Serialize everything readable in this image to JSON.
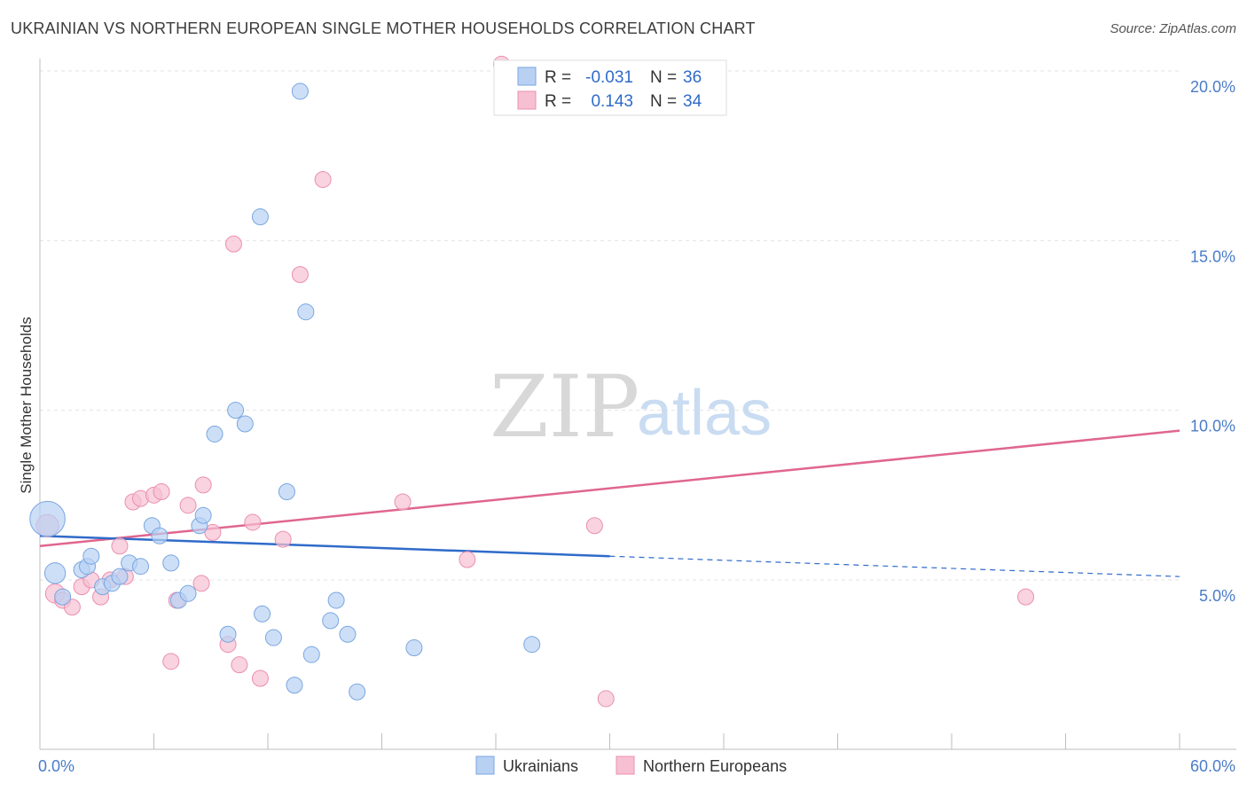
{
  "title": "UKRAINIAN VS NORTHERN EUROPEAN SINGLE MOTHER HOUSEHOLDS CORRELATION CHART",
  "source": "Source: ZipAtlas.com",
  "watermark": {
    "zip": "ZIP",
    "atlas": "atlas"
  },
  "colors": {
    "blue_fill": "#b8d1f3",
    "blue_stroke": "#7aa6e0",
    "blue_line": "#2f6bc9",
    "pink_fill": "#f7c0d2",
    "pink_stroke": "#eb8fb0",
    "pink_line": "#e0668f",
    "grid": "#e3e3e3",
    "axis": "#bdbdbd"
  },
  "legend": {
    "r_label": "R =",
    "n_label": "N =",
    "rows": [
      {
        "series": "Ukrainians",
        "r": "-0.031",
        "n": "36"
      },
      {
        "series": "Northern Europeans",
        "r": "0.143",
        "n": "34"
      }
    ]
  },
  "chart_data": {
    "type": "scatter",
    "title": "UKRAINIAN VS NORTHERN EUROPEAN SINGLE MOTHER HOUSEHOLDS CORRELATION CHART",
    "xlabel": "",
    "ylabel": "Single Mother Households",
    "xlim": [
      0,
      60
    ],
    "ylim": [
      0,
      21
    ],
    "x_tick_labels": [
      "0.0%",
      "60.0%"
    ],
    "y_ticks": [
      5,
      10,
      15,
      20
    ],
    "y_tick_labels": [
      "5.0%",
      "10.0%",
      "15.0%",
      "20.0%"
    ],
    "grid": true,
    "series": [
      {
        "name": "Ukrainians",
        "r": -0.031,
        "n": 36,
        "trend": {
          "x0": 0,
          "y0": 6.3,
          "x1": 30,
          "y1": 5.7,
          "dashed_to_x": 60,
          "dashed_to_y": 5.1
        },
        "points": [
          [
            0.4,
            6.8,
            2.2
          ],
          [
            0.8,
            5.2,
            1.3
          ],
          [
            1.2,
            4.5,
            1
          ],
          [
            2.2,
            5.3,
            1
          ],
          [
            2.5,
            5.4,
            1
          ],
          [
            2.7,
            5.7,
            1
          ],
          [
            3.3,
            4.8,
            1
          ],
          [
            3.8,
            4.9,
            1
          ],
          [
            4.2,
            5.1,
            1
          ],
          [
            4.7,
            5.5,
            1
          ],
          [
            5.3,
            5.4,
            1
          ],
          [
            5.9,
            6.6,
            1
          ],
          [
            6.3,
            6.3,
            1
          ],
          [
            6.9,
            5.5,
            1
          ],
          [
            7.3,
            4.4,
            1
          ],
          [
            7.8,
            4.6,
            1
          ],
          [
            8.4,
            6.6,
            1
          ],
          [
            8.6,
            6.9,
            1
          ],
          [
            9.2,
            9.3,
            1
          ],
          [
            9.9,
            3.4,
            1
          ],
          [
            10.3,
            10.0,
            1
          ],
          [
            10.8,
            9.6,
            1
          ],
          [
            11.6,
            15.7,
            1
          ],
          [
            11.7,
            4.0,
            1
          ],
          [
            12.3,
            3.3,
            1
          ],
          [
            13.0,
            7.6,
            1
          ],
          [
            13.4,
            1.9,
            1
          ],
          [
            13.7,
            19.4,
            1
          ],
          [
            14.0,
            12.9,
            1
          ],
          [
            14.3,
            2.8,
            1
          ],
          [
            15.3,
            3.8,
            1
          ],
          [
            15.6,
            4.4,
            1
          ],
          [
            16.2,
            3.4,
            1
          ],
          [
            16.7,
            1.7,
            1
          ],
          [
            19.7,
            3.0,
            1
          ],
          [
            25.9,
            3.1,
            1
          ]
        ]
      },
      {
        "name": "Northern Europeans",
        "r": 0.143,
        "n": 34,
        "trend": {
          "x0": 0,
          "y0": 6.0,
          "x1": 60,
          "y1": 9.4
        },
        "points": [
          [
            0.4,
            6.6,
            1.4
          ],
          [
            0.8,
            4.6,
            1.2
          ],
          [
            1.2,
            4.4,
            1
          ],
          [
            1.7,
            4.2,
            1
          ],
          [
            2.2,
            4.8,
            1
          ],
          [
            2.7,
            5.0,
            1
          ],
          [
            3.2,
            4.5,
            1
          ],
          [
            3.7,
            5.0,
            1
          ],
          [
            4.2,
            6.0,
            1
          ],
          [
            4.5,
            5.1,
            1
          ],
          [
            4.9,
            7.3,
            1
          ],
          [
            5.3,
            7.4,
            1
          ],
          [
            6.0,
            7.5,
            1
          ],
          [
            6.4,
            7.6,
            1
          ],
          [
            6.9,
            2.6,
            1
          ],
          [
            7.2,
            4.4,
            1
          ],
          [
            7.8,
            7.2,
            1
          ],
          [
            8.5,
            4.9,
            1
          ],
          [
            8.6,
            7.8,
            1
          ],
          [
            9.1,
            6.4,
            1
          ],
          [
            9.9,
            3.1,
            1
          ],
          [
            10.2,
            14.9,
            1
          ],
          [
            10.5,
            2.5,
            1
          ],
          [
            11.2,
            6.7,
            1
          ],
          [
            11.6,
            2.1,
            1
          ],
          [
            12.8,
            6.2,
            1
          ],
          [
            13.7,
            14.0,
            1
          ],
          [
            14.9,
            16.8,
            1
          ],
          [
            19.1,
            7.3,
            1
          ],
          [
            22.5,
            5.6,
            1
          ],
          [
            24.3,
            20.2,
            1
          ],
          [
            29.2,
            6.6,
            1
          ],
          [
            29.8,
            1.5,
            1
          ],
          [
            51.9,
            4.5,
            1
          ]
        ]
      }
    ]
  }
}
